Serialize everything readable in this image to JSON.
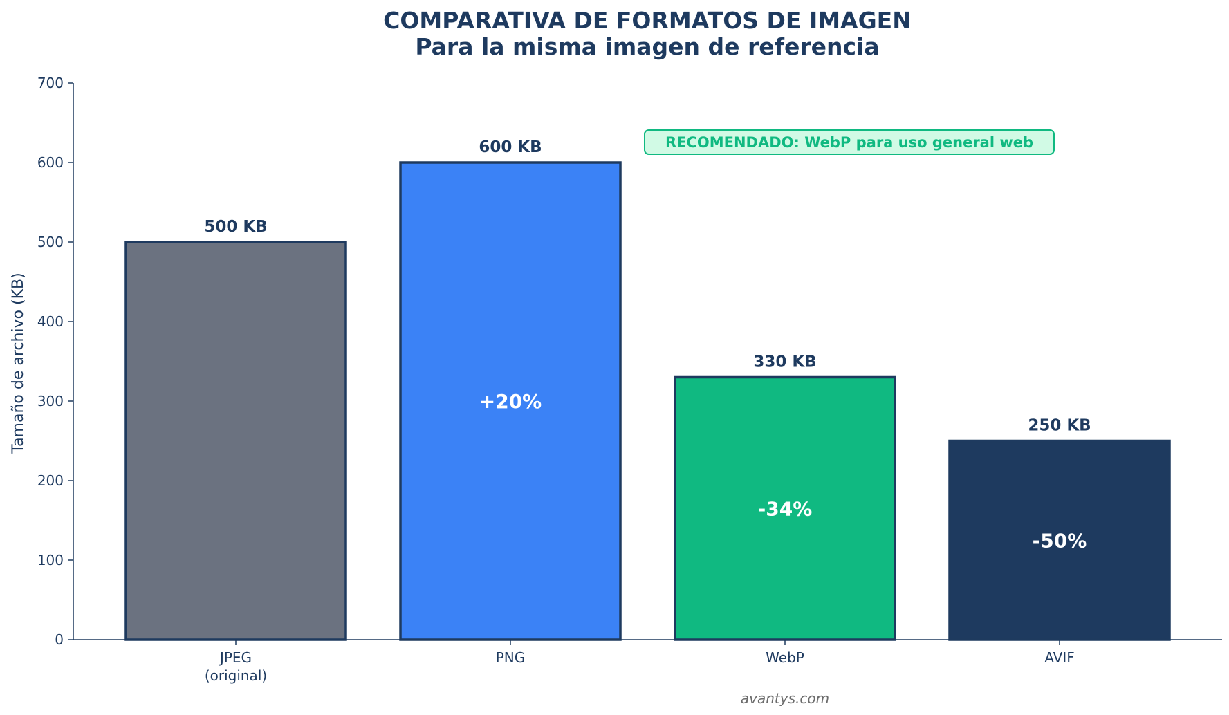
{
  "chart_data": {
    "type": "bar",
    "title": "COMPARATIVA DE FORMATOS DE IMAGEN",
    "subtitle": "Para la misma imagen de referencia",
    "ylabel": "Tamaño de archivo (KB)",
    "xlabel": "",
    "ylim": [
      0,
      700
    ],
    "yticks": [
      0,
      100,
      200,
      300,
      400,
      500,
      600,
      700
    ],
    "grid": false,
    "categories": [
      "JPEG\n(original)",
      "PNG",
      "WebP",
      "AVIF"
    ],
    "values": [
      500,
      600,
      330,
      250
    ],
    "value_labels": [
      "500 KB",
      "600 KB",
      "330 KB",
      "250 KB"
    ],
    "change_labels": [
      "",
      "+20%",
      "-34%",
      "-50%"
    ],
    "colors": [
      "#6b7280",
      "#3b82f6",
      "#10b981",
      "#1e3a5f"
    ],
    "edge_color": "#1e3a5f",
    "annotation": {
      "text": "RECOMENDADO: WebP para uso general web",
      "text_color": "#10b981",
      "background": "#d1fae5",
      "border": "#10b981"
    },
    "watermark": "avantys.com"
  }
}
